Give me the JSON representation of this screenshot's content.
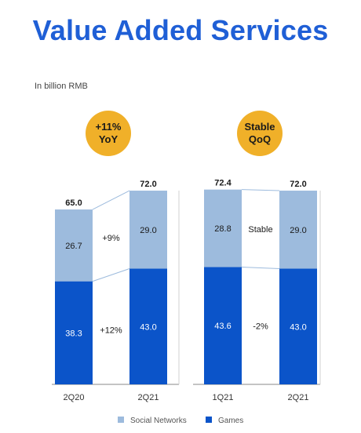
{
  "title": "Value Added Services",
  "unit_label": "In billion RMB",
  "colors": {
    "social": "#9dbbdd",
    "games": "#0b54c9",
    "badge": "#f0b029",
    "title": "#1f5fd6"
  },
  "legend": [
    {
      "name": "Social Networks",
      "color": "#9dbbdd"
    },
    {
      "name": "Games",
      "color": "#0b54c9"
    }
  ],
  "chart_data": [
    {
      "type": "bar",
      "stacked": true,
      "badge": {
        "line1": "+11%",
        "line2": "YoY"
      },
      "categories": [
        "2Q20",
        "2Q21"
      ],
      "totals": [
        "65.0",
        "72.0"
      ],
      "series": [
        {
          "name": "Games",
          "values": [
            38.3,
            43.0
          ],
          "labels": [
            "38.3",
            "43.0"
          ]
        },
        {
          "name": "Social Networks",
          "values": [
            26.7,
            29.0
          ],
          "labels": [
            "26.7",
            "29.0"
          ]
        }
      ],
      "change_labels": {
        "social": "+9%",
        "games": "+12%"
      }
    },
    {
      "type": "bar",
      "stacked": true,
      "badge": {
        "line1": "Stable",
        "line2": "QoQ"
      },
      "categories": [
        "1Q21",
        "2Q21"
      ],
      "totals": [
        "72.4",
        "72.0"
      ],
      "series": [
        {
          "name": "Games",
          "values": [
            43.6,
            43.0
          ],
          "labels": [
            "43.6",
            "43.0"
          ]
        },
        {
          "name": "Social Networks",
          "values": [
            28.8,
            29.0
          ],
          "labels": [
            "28.8",
            "29.0"
          ]
        }
      ],
      "change_labels": {
        "social": "Stable",
        "games": "-2%"
      }
    }
  ]
}
